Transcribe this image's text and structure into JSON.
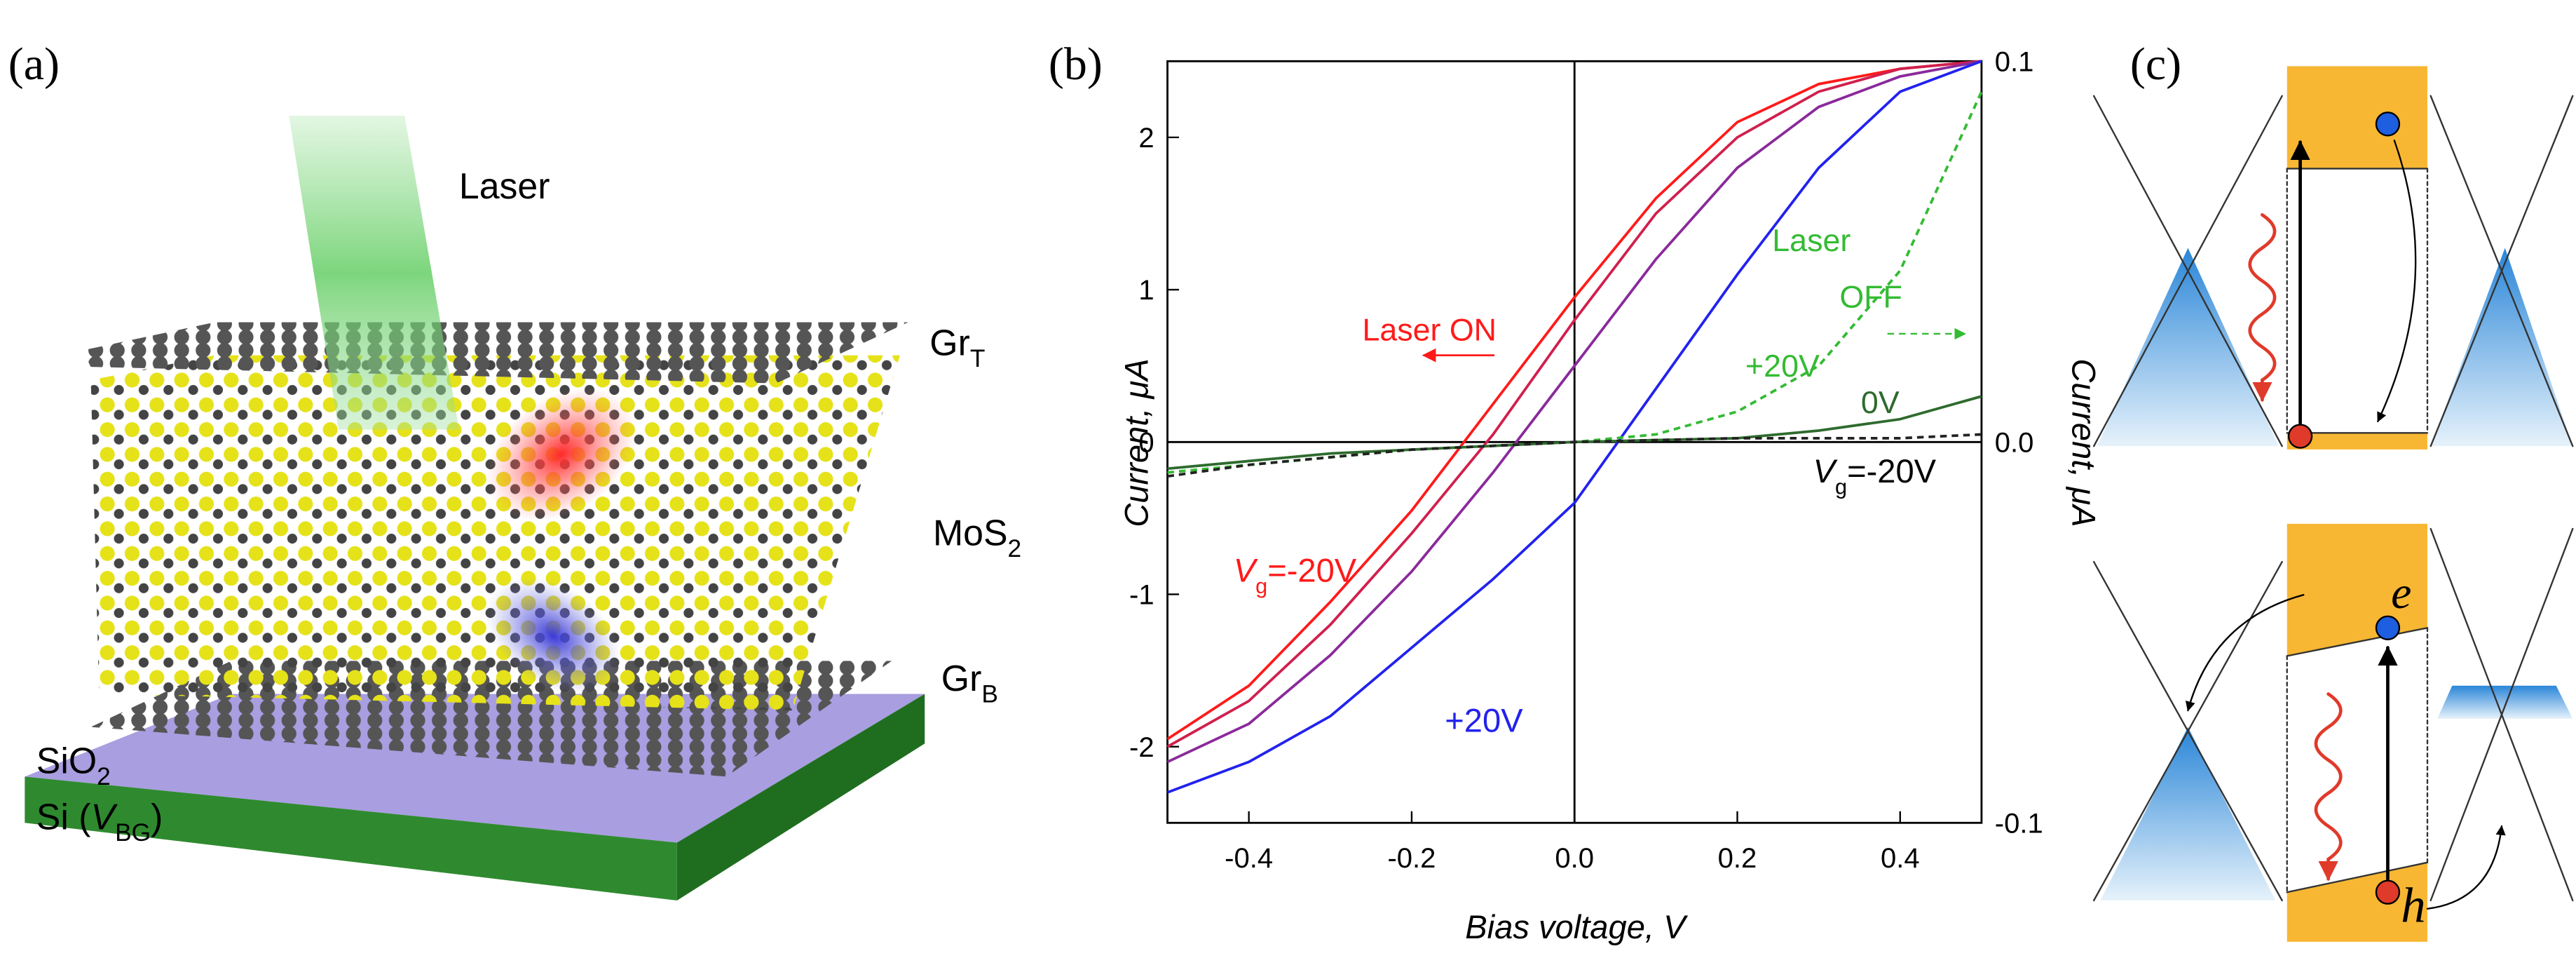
{
  "panel_a": {
    "label": "(a)",
    "laser": "Laser",
    "gr_t": [
      "Gr",
      "T"
    ],
    "mos2": [
      "MoS",
      "2"
    ],
    "gr_b": [
      "Gr",
      "B"
    ],
    "sio2": [
      "SiO",
      "2"
    ],
    "si": [
      "Si (",
      "V",
      "BG",
      ")"
    ]
  },
  "panel_c": {
    "label": "(c)",
    "electron": "e",
    "hole": "h"
  },
  "chart_data": {
    "type": "line",
    "label": "(b)",
    "xlabel": "Bias voltage, V",
    "ylabel": "Current, μA",
    "y2label": "Current, μA",
    "xlim": [
      -0.5,
      0.5
    ],
    "ylim": [
      -2.5,
      2.5
    ],
    "y2lim": [
      -0.1,
      0.1
    ],
    "xticks": [
      -0.4,
      -0.2,
      {
        "value": 0,
        "label": "0.0"
      },
      0.2,
      0.4
    ],
    "yticks": [
      -2,
      -1,
      0,
      1,
      2
    ],
    "y2ticks": [
      -0.1,
      {
        "value": 0,
        "label": "0.0"
      },
      0.1
    ],
    "x": [
      -0.5,
      -0.4,
      -0.3,
      -0.2,
      -0.1,
      0,
      0.1,
      0.2,
      0.3,
      0.4,
      0.5
    ],
    "series": [
      {
        "color": "#ff1a1a",
        "values": [
          -1.95,
          -1.6,
          -1.05,
          -0.45,
          0.25,
          0.95,
          1.6,
          2.1,
          2.35,
          2.45,
          2.5
        ]
      },
      {
        "color": "#d0204e",
        "values": [
          -2.0,
          -1.7,
          -1.2,
          -0.6,
          0.05,
          0.8,
          1.5,
          2.0,
          2.3,
          2.45,
          2.5
        ]
      },
      {
        "color": "#8a2a9a",
        "values": [
          -2.1,
          -1.85,
          -1.4,
          -0.85,
          -0.2,
          0.5,
          1.2,
          1.8,
          2.2,
          2.4,
          2.5
        ]
      },
      {
        "color": "#2222ee",
        "values": [
          -2.3,
          -2.1,
          -1.8,
          -1.35,
          -0.9,
          -0.4,
          0.35,
          1.1,
          1.8,
          2.3,
          2.5
        ]
      },
      {
        "color": "#33bb33",
        "dashed": true,
        "axis": "y2",
        "values": [
          -0.008,
          -0.006,
          -0.004,
          -0.002,
          -0.001,
          0,
          0.002,
          0.008,
          0.02,
          0.045,
          0.092
        ]
      },
      {
        "color": "#2e6b2e",
        "axis": "y2",
        "values": [
          -0.007,
          -0.005,
          -0.003,
          -0.002,
          -0.001,
          0,
          0.0005,
          0.001,
          0.003,
          0.006,
          0.012
        ]
      },
      {
        "color": "#222222",
        "dashed": true,
        "axis": "y2",
        "values": [
          -0.009,
          -0.006,
          -0.004,
          -0.002,
          -0.001,
          0,
          0.0005,
          0.001,
          0.001,
          0.001,
          0.002
        ]
      }
    ],
    "annotations": {
      "laser_on": "Laser ON",
      "laser_off": [
        "Laser",
        "OFF"
      ],
      "plus20_green": "+20V",
      "zero_v": "0V",
      "vg_black": [
        "V",
        "g",
        "=-20V"
      ],
      "vg_red": [
        "V",
        "g",
        "=-20V"
      ],
      "plus20_blue": "+20V"
    }
  }
}
